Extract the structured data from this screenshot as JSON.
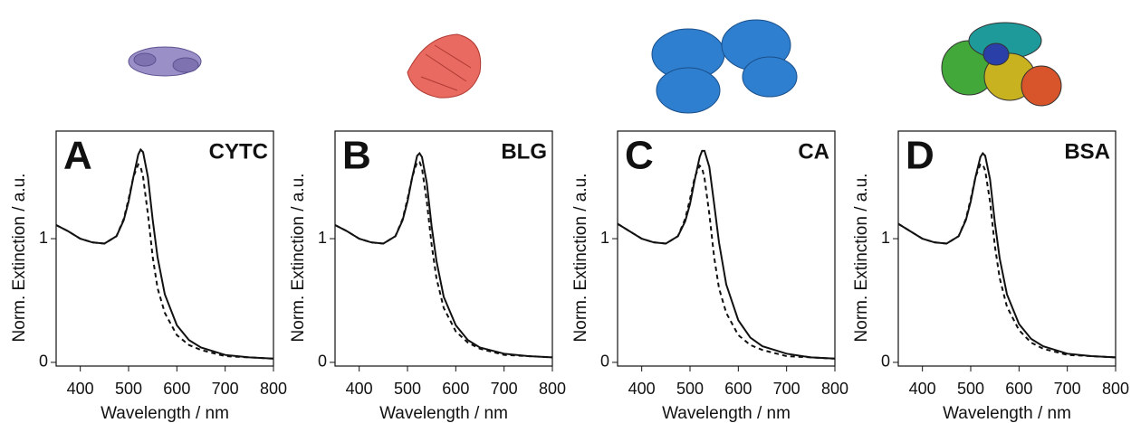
{
  "chart_data": [
    {
      "type": "line",
      "panel": "A",
      "label": "CYTC",
      "xlabel": "Wavelength / nm",
      "ylabel": "Norm. Extinction / a.u.",
      "x": [
        350,
        375,
        400,
        425,
        450,
        475,
        490,
        500,
        510,
        520,
        525,
        530,
        540,
        550,
        560,
        575,
        600,
        625,
        650,
        700,
        750,
        800
      ],
      "series": [
        {
          "color": "#111111",
          "style": "solid",
          "values": [
            1.11,
            1.06,
            1.0,
            0.97,
            0.96,
            1.02,
            1.15,
            1.3,
            1.5,
            1.68,
            1.72,
            1.7,
            1.5,
            1.15,
            0.85,
            0.55,
            0.3,
            0.18,
            0.12,
            0.06,
            0.04,
            0.03
          ]
        },
        {
          "color": "#111111",
          "style": "dashed",
          "values": [
            1.11,
            1.06,
            1.0,
            0.97,
            0.96,
            1.02,
            1.16,
            1.32,
            1.5,
            1.6,
            1.58,
            1.5,
            1.2,
            0.85,
            0.6,
            0.4,
            0.22,
            0.14,
            0.1,
            0.05,
            0.04,
            0.03
          ]
        }
      ],
      "xlim": [
        350,
        800
      ],
      "ylim": [
        -0.03,
        1.87
      ],
      "xticks": [
        400,
        500,
        600,
        700,
        800
      ],
      "yticks": [
        0,
        1
      ]
    },
    {
      "type": "line",
      "panel": "B",
      "label": "BLG",
      "xlabel": "Wavelength / nm",
      "ylabel": "Norm. Extinction / a.u.",
      "x": [
        350,
        375,
        400,
        425,
        450,
        475,
        490,
        500,
        510,
        520,
        525,
        530,
        540,
        550,
        560,
        575,
        600,
        625,
        650,
        700,
        750,
        800
      ],
      "series": [
        {
          "color": "#111111",
          "style": "solid",
          "values": [
            1.11,
            1.06,
            1.0,
            0.97,
            0.96,
            1.02,
            1.15,
            1.3,
            1.5,
            1.67,
            1.69,
            1.66,
            1.45,
            1.1,
            0.82,
            0.53,
            0.3,
            0.18,
            0.12,
            0.07,
            0.05,
            0.04
          ]
        },
        {
          "color": "#111111",
          "style": "dashed",
          "values": [
            1.11,
            1.06,
            1.0,
            0.97,
            0.96,
            1.02,
            1.16,
            1.32,
            1.5,
            1.62,
            1.62,
            1.57,
            1.3,
            0.95,
            0.68,
            0.44,
            0.25,
            0.16,
            0.11,
            0.06,
            0.05,
            0.04
          ]
        }
      ],
      "xlim": [
        350,
        800
      ],
      "ylim": [
        -0.03,
        1.87
      ],
      "xticks": [
        400,
        500,
        600,
        700,
        800
      ],
      "yticks": [
        0,
        1
      ]
    },
    {
      "type": "line",
      "panel": "C",
      "label": "CA",
      "xlabel": "Wavelength / nm",
      "ylabel": "Norm. Extinction / a.u.",
      "x": [
        350,
        375,
        400,
        425,
        450,
        475,
        490,
        500,
        510,
        520,
        525,
        530,
        540,
        550,
        560,
        575,
        600,
        625,
        650,
        700,
        750,
        800
      ],
      "series": [
        {
          "color": "#111111",
          "style": "solid",
          "values": [
            1.12,
            1.06,
            1.0,
            0.97,
            0.96,
            1.02,
            1.14,
            1.28,
            1.48,
            1.66,
            1.71,
            1.71,
            1.58,
            1.28,
            0.97,
            0.63,
            0.34,
            0.2,
            0.13,
            0.07,
            0.04,
            0.03
          ]
        },
        {
          "color": "#111111",
          "style": "dashed",
          "values": [
            1.12,
            1.06,
            1.0,
            0.97,
            0.96,
            1.02,
            1.16,
            1.32,
            1.5,
            1.59,
            1.57,
            1.49,
            1.2,
            0.85,
            0.6,
            0.4,
            0.22,
            0.14,
            0.1,
            0.05,
            0.04,
            0.03
          ]
        }
      ],
      "xlim": [
        350,
        800
      ],
      "ylim": [
        -0.03,
        1.87
      ],
      "xticks": [
        400,
        500,
        600,
        700,
        800
      ],
      "yticks": [
        0,
        1
      ]
    },
    {
      "type": "line",
      "panel": "D",
      "label": "BSA",
      "xlabel": "Wavelength / nm",
      "ylabel": "Norm. Extinction / a.u.",
      "x": [
        350,
        375,
        400,
        425,
        450,
        475,
        490,
        500,
        510,
        520,
        525,
        530,
        540,
        550,
        560,
        575,
        600,
        625,
        650,
        700,
        750,
        800
      ],
      "series": [
        {
          "color": "#111111",
          "style": "solid",
          "values": [
            1.12,
            1.06,
            1.0,
            0.97,
            0.96,
            1.02,
            1.15,
            1.3,
            1.5,
            1.66,
            1.69,
            1.67,
            1.48,
            1.13,
            0.84,
            0.55,
            0.31,
            0.19,
            0.13,
            0.07,
            0.05,
            0.04
          ]
        },
        {
          "color": "#111111",
          "style": "dashed",
          "values": [
            1.12,
            1.06,
            1.0,
            0.97,
            0.96,
            1.02,
            1.16,
            1.32,
            1.5,
            1.6,
            1.6,
            1.55,
            1.3,
            0.94,
            0.68,
            0.45,
            0.26,
            0.16,
            0.11,
            0.06,
            0.05,
            0.04
          ]
        }
      ],
      "xlim": [
        350,
        800
      ],
      "ylim": [
        -0.03,
        1.87
      ],
      "xticks": [
        400,
        500,
        600,
        700,
        800
      ],
      "yticks": [
        0,
        1
      ]
    }
  ]
}
